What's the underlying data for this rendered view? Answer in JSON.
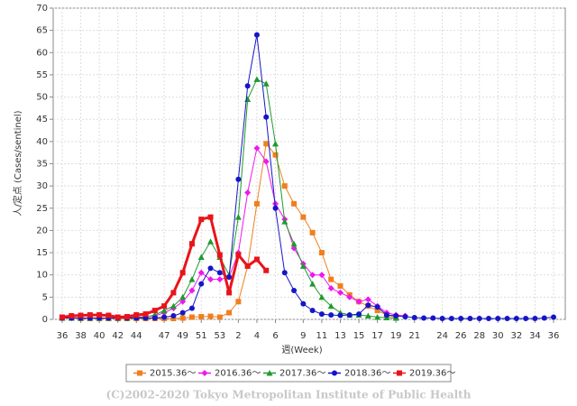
{
  "chart_data": {
    "type": "line",
    "x_label": "週(Week)",
    "y_label": "人/定点 (Cases/sentinel)",
    "footer": "(C)2002-2020 Tokyo Metropolitan Institute of Public Health",
    "categories": [
      "36",
      null,
      "38",
      null,
      "40",
      null,
      "42",
      null,
      "44",
      null,
      null,
      "47",
      null,
      "49",
      null,
      "51",
      null,
      "53",
      null,
      "2",
      null,
      "4",
      null,
      "6",
      null,
      null,
      "9",
      null,
      "11",
      null,
      "13",
      null,
      "15",
      null,
      "17",
      null,
      "19",
      null,
      "21",
      null,
      null,
      "24",
      null,
      "26",
      null,
      "28",
      null,
      "30",
      null,
      "32",
      null,
      "34",
      null,
      "36"
    ],
    "ylim": [
      0,
      70
    ],
    "yticks": [
      0,
      5,
      10,
      15,
      20,
      25,
      30,
      35,
      40,
      45,
      50,
      55,
      60,
      65,
      70
    ],
    "grid": true,
    "series": [
      {
        "name": "2015.36～",
        "color": "#f07f1e",
        "marker": "square",
        "line_width": 1,
        "values": [
          0.3,
          0.3,
          0.2,
          0.2,
          0.2,
          0.2,
          0.2,
          0.2,
          0.2,
          0.2,
          0.2,
          0.2,
          0.2,
          0.3,
          0.5,
          0.6,
          0.7,
          0.5,
          1.5,
          4,
          12,
          26,
          39.5,
          37,
          30,
          26,
          23,
          19.5,
          15,
          9,
          7.5,
          5.5,
          4,
          3,
          2,
          1,
          0.5,
          null,
          null,
          null,
          null,
          null,
          null,
          null,
          null,
          null,
          null,
          null,
          null,
          null,
          null,
          null,
          null,
          null
        ]
      },
      {
        "name": "2016.36～",
        "color": "#ee18ee",
        "marker": "diamond",
        "line_width": 1,
        "values": [
          0.3,
          0.3,
          0.3,
          0.3,
          0.3,
          0.3,
          0.3,
          0.3,
          0.5,
          0.6,
          0.8,
          1.5,
          2.5,
          4,
          6.5,
          10.5,
          9,
          9,
          9.5,
          15,
          28.5,
          38.5,
          35.5,
          26,
          22.5,
          16,
          12.5,
          10,
          10,
          7,
          6,
          5,
          4,
          4.5,
          3,
          1.5,
          1,
          0.8,
          null,
          null,
          null,
          null,
          null,
          null,
          null,
          null,
          null,
          null,
          null,
          null,
          null,
          null,
          null,
          null
        ]
      },
      {
        "name": "2017.36～",
        "color": "#1e9a2e",
        "marker": "triangle",
        "line_width": 1,
        "values": [
          0.3,
          0.3,
          0.3,
          0.3,
          0.3,
          0.3,
          0.3,
          0.3,
          0.4,
          0.5,
          1,
          2,
          3,
          5,
          9,
          14,
          17.5,
          14,
          10,
          23,
          49.5,
          54,
          53,
          39.5,
          22,
          17,
          12,
          8,
          5,
          3,
          1.5,
          1,
          1,
          0.8,
          0.5,
          0.4,
          0.3,
          null,
          null,
          null,
          null,
          null,
          null,
          null,
          null,
          null,
          null,
          null,
          null,
          null,
          null,
          null,
          null,
          null
        ]
      },
      {
        "name": "2018.36～",
        "color": "#1515c8",
        "marker": "circle",
        "line_width": 1,
        "values": [
          0.3,
          0.3,
          0.3,
          0.3,
          0.3,
          0.3,
          0.3,
          0.3,
          0.3,
          0.3,
          0.3,
          0.5,
          0.8,
          1.5,
          2.5,
          8,
          11.5,
          10.5,
          9.5,
          31.5,
          52.5,
          64,
          45.5,
          25,
          10.5,
          6.5,
          3.5,
          2,
          1.2,
          1,
          0.9,
          1,
          1.2,
          3.2,
          2.8,
          1,
          0.8,
          0.6,
          0.4,
          0.3,
          0.3,
          0.2,
          0.2,
          0.2,
          0.2,
          0.2,
          0.2,
          0.2,
          0.2,
          0.2,
          0.2,
          0.2,
          0.3,
          0.5
        ]
      },
      {
        "name": "2019.36～",
        "color": "#e8141a",
        "marker": "square",
        "line_width": 3,
        "values": [
          0.5,
          0.8,
          0.9,
          1,
          1,
          0.9,
          0.5,
          0.6,
          1,
          1.2,
          2,
          3,
          6,
          10.5,
          17,
          22.5,
          23,
          14.5,
          6,
          14.5,
          12,
          13.5,
          11,
          null,
          null,
          null,
          null,
          null,
          null,
          null,
          null,
          null,
          null,
          null,
          null,
          null,
          null,
          null,
          null,
          null,
          null,
          null,
          null,
          null,
          null,
          null,
          null,
          null,
          null,
          null,
          null,
          null,
          null,
          null
        ]
      }
    ]
  }
}
